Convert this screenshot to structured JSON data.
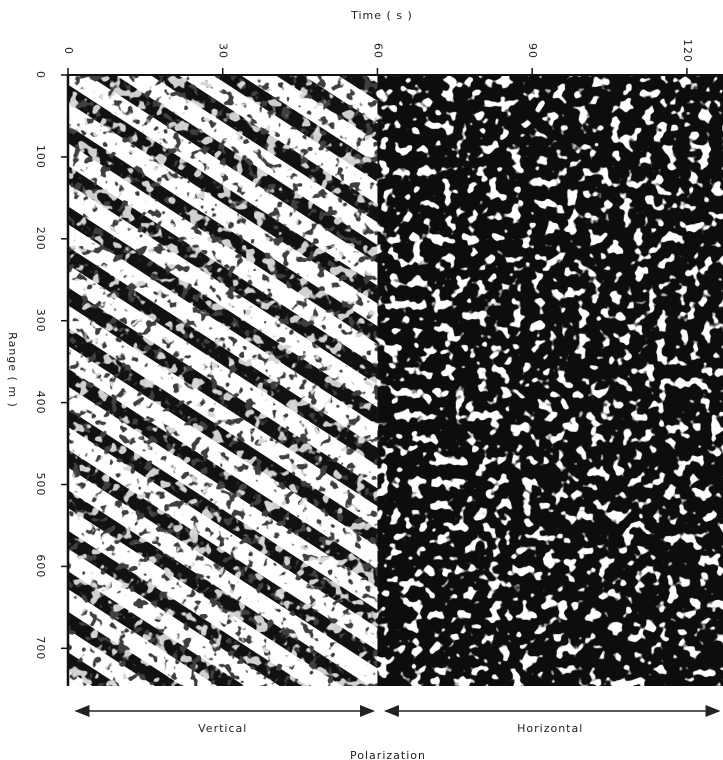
{
  "chart_data": {
    "type": "image",
    "xlabel": "Time ( s )",
    "ylabel": "Range ( m )",
    "xlim": [
      0,
      127
    ],
    "xticks": [
      0,
      30,
      60,
      90,
      120
    ],
    "ylim": [
      0,
      746
    ],
    "yticks": [
      0,
      100,
      200,
      300,
      400,
      500,
      600,
      700
    ],
    "regions": [
      {
        "label": "Vertical",
        "from": 0,
        "to": 60
      },
      {
        "label": "Horizontal",
        "from": 60,
        "to": 127
      }
    ],
    "group_label": "Polarization"
  }
}
